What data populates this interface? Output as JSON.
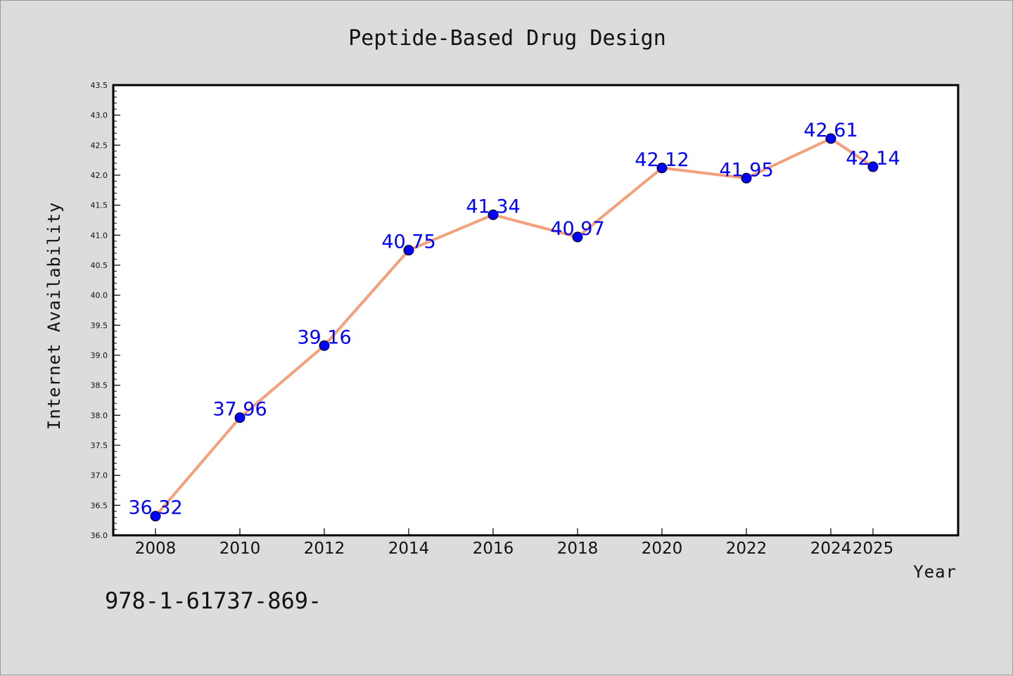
{
  "chart_data": {
    "type": "line",
    "title": "Peptide-Based Drug Design",
    "xlabel": "Year",
    "ylabel": "Internet Availability",
    "x": [
      "2008",
      "2010",
      "2012",
      "2014",
      "2016",
      "2018",
      "2020",
      "2022",
      "2024",
      "2025"
    ],
    "series": [
      {
        "values": [
          36.32,
          37.96,
          39.16,
          40.75,
          41.34,
          40.97,
          42.12,
          41.95,
          42.61,
          42.14
        ],
        "labels": [
          "36.32",
          "37.96",
          "39.16",
          "40.75",
          "41.34",
          "40.97",
          "42.12",
          "41.95",
          "42.61",
          "42.14"
        ],
        "line_color": "#f4a07a",
        "marker_color": "#0000ff"
      }
    ],
    "ylim": [
      36.0,
      43.5
    ],
    "yticks": [
      "36.0",
      "36.5",
      "37.0",
      "37.5",
      "38.0",
      "38.5",
      "39.0",
      "39.5",
      "40.0",
      "40.5",
      "41.0",
      "41.5",
      "42.0",
      "42.5",
      "43.0",
      "43.5"
    ],
    "grid": false,
    "legend": "none"
  },
  "footer_text": "978-1-61737-869-"
}
